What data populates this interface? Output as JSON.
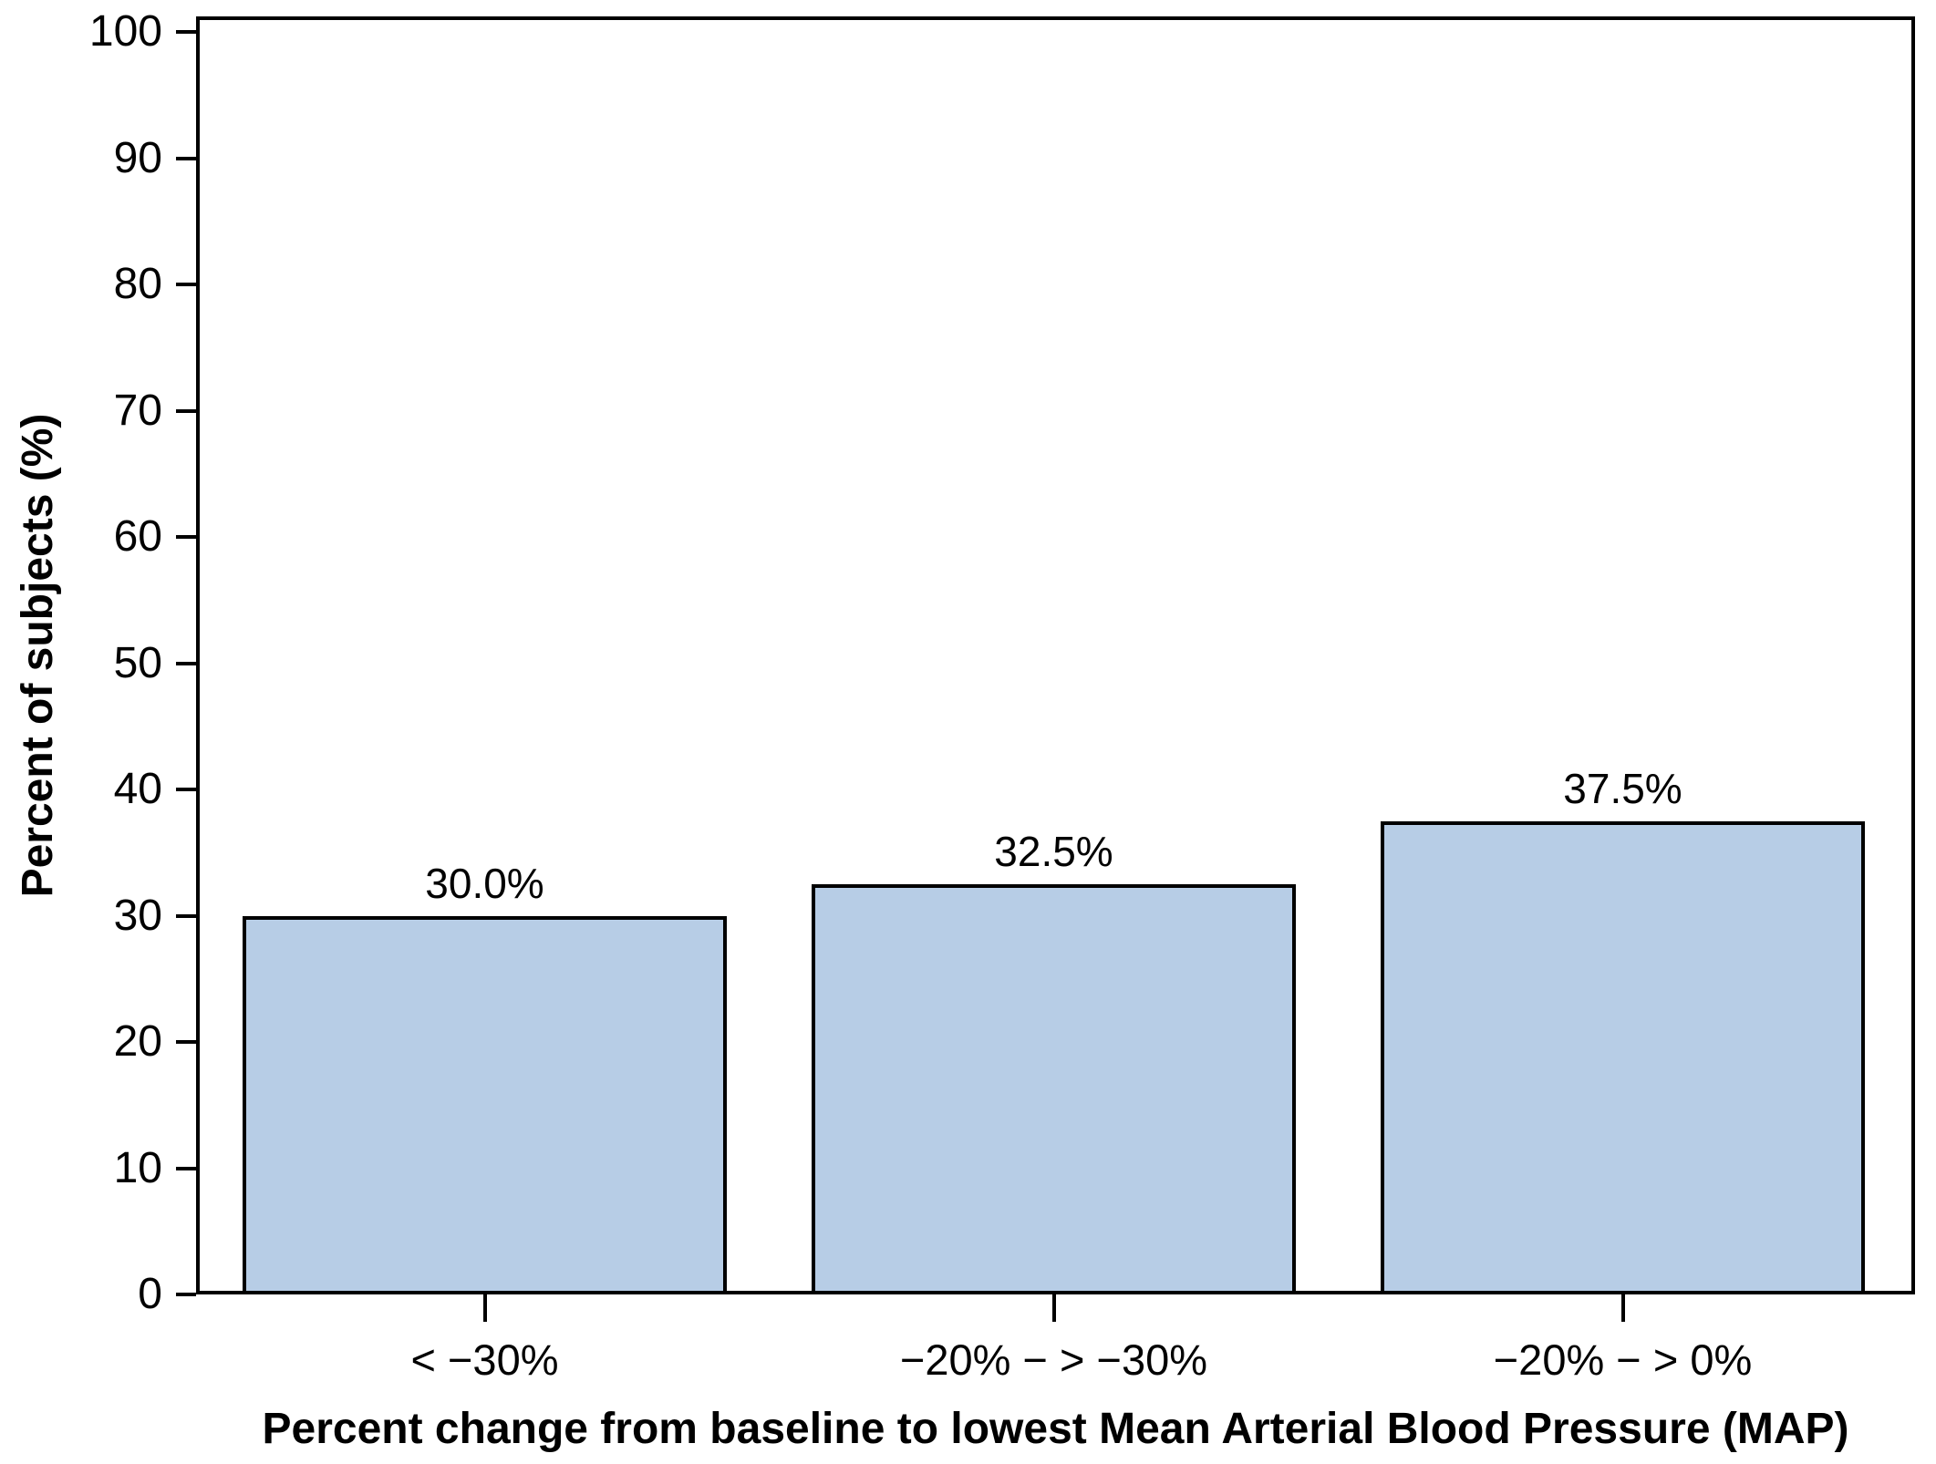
{
  "figure": {
    "background_color": "#ffffff",
    "text_color": "#000000"
  },
  "chart_data": {
    "type": "bar",
    "title": "",
    "categories": [
      "< −30%",
      "−20% − > −30%",
      "−20% − > 0%"
    ],
    "values": [
      30.0,
      32.5,
      37.5
    ],
    "bar_value_labels": [
      "30.0%",
      "32.5%",
      "37.5%"
    ],
    "xlabel": "Percent change from baseline to lowest Mean Arterial Blood Pressure (MAP)",
    "ylabel": "Percent of subjects (%)",
    "ylim": [
      0,
      100
    ],
    "yticks": [
      0,
      10,
      20,
      30,
      40,
      50,
      60,
      70,
      80,
      90,
      100
    ],
    "ytick_labels": [
      "0",
      "10",
      "20",
      "30",
      "40",
      "50",
      "60",
      "70",
      "80",
      "90",
      "100"
    ],
    "grid": false,
    "legend": null,
    "bar_fill_color": "#b7cde6",
    "bar_border_color": "#000000",
    "axis_color": "#000000"
  }
}
